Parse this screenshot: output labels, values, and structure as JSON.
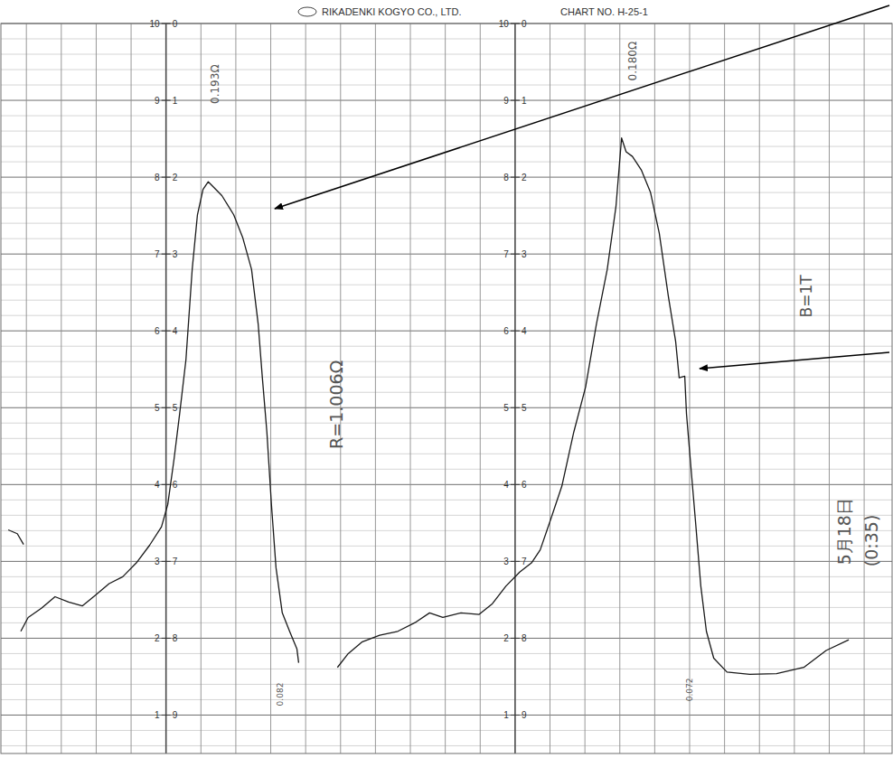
{
  "chart_data": {
    "type": "line",
    "title": "RIKADENKI KOGYO CO., LTD.",
    "subtitle": "CHART NO. H-25-1",
    "color": "#1a1a1a",
    "grid": true,
    "tick_labels": "y",
    "xlim": [
      -4.73,
      20.8
    ],
    "xticks": [
      -4,
      -3,
      -2,
      -1,
      0,
      1,
      2,
      3,
      4,
      5,
      6,
      7,
      8,
      9,
      10,
      11,
      12,
      13,
      14,
      15,
      16,
      17,
      18,
      19,
      20
    ],
    "ylim": [
      0.5,
      10
    ],
    "yticks": [
      1,
      2,
      3,
      4,
      5,
      6,
      7,
      8,
      9,
      10
    ],
    "y2lim": [
      9.5,
      0
    ],
    "y2ticks": [
      9,
      8,
      7,
      6,
      5,
      4,
      3,
      2,
      1,
      0
    ],
    "x": [
      -4.52,
      -4.26,
      -4.08,
      null,
      -4.16,
      -3.95,
      -3.57,
      -3.18,
      -2.79,
      -2.4,
      -2.02,
      -1.63,
      -1.24,
      -0.85,
      -0.47,
      -0.13,
      0.05,
      0.23,
      0.39,
      0.57,
      0.75,
      0.9,
      1.06,
      1.21,
      1.34,
      1.6,
      1.94,
      2.2,
      2.45,
      2.64,
      2.76,
      2.89,
      3.02,
      3.15,
      3.33,
      3.54,
      3.75,
      3.8,
      null,
      4.91,
      5.22,
      5.61,
      6.12,
      6.64,
      7.16,
      7.55,
      7.93,
      8.45,
      8.97,
      9.35,
      9.74,
      10.13,
      10.47,
      10.72,
      11.03,
      11.34,
      11.68,
      12.02,
      12.33,
      12.64,
      12.89,
      13.05,
      13.18,
      13.36,
      13.62,
      13.88,
      14.13,
      14.39,
      14.6,
      14.7,
      14.86,
      14.91,
      15.04,
      15.17,
      15.32,
      15.48,
      15.69,
      16.07,
      16.72,
      17.49,
      18.27,
      18.91,
      19.56
    ],
    "values": [
      3.41,
      3.36,
      3.22,
      null,
      2.09,
      2.27,
      2.39,
      2.54,
      2.47,
      2.42,
      2.56,
      2.71,
      2.8,
      2.98,
      3.21,
      3.45,
      3.74,
      4.33,
      4.92,
      5.62,
      6.8,
      7.51,
      7.84,
      7.94,
      7.88,
      7.76,
      7.51,
      7.21,
      6.8,
      6.09,
      5.39,
      4.68,
      3.74,
      2.92,
      2.33,
      2.09,
      1.86,
      1.68,
      null,
      1.62,
      1.8,
      1.95,
      2.04,
      2.09,
      2.21,
      2.33,
      2.27,
      2.33,
      2.31,
      2.45,
      2.68,
      2.86,
      2.98,
      3.15,
      3.56,
      3.98,
      4.68,
      5.27,
      6.09,
      6.8,
      7.62,
      8.51,
      8.33,
      8.27,
      8.09,
      7.8,
      7.27,
      6.45,
      5.86,
      5.39,
      5.41,
      4.92,
      4.21,
      3.51,
      2.68,
      2.09,
      1.74,
      1.56,
      1.53,
      1.54,
      1.62,
      1.84,
      1.98
    ],
    "annotations": [
      {
        "text": "0.193Ω",
        "x": 1.4,
        "y": 9.21
      },
      {
        "text": "0.180Ω",
        "x": 13.36,
        "y": 9.51
      },
      {
        "text": "R=1.006Ω",
        "x": 4.88,
        "y": 5.04
      },
      {
        "text": "B=1T",
        "x": 18.35,
        "y": 6.45
      },
      {
        "text": "5月18日",
        "x": 19.43,
        "y": 3.39
      },
      {
        "text": "(0:35)",
        "x": 20.21,
        "y": 3.27
      },
      {
        "text": "0.082",
        "x": 3.26,
        "y": 1.27
      },
      {
        "text": "0.072",
        "x": 14.99,
        "y": 1.33
      }
    ]
  }
}
